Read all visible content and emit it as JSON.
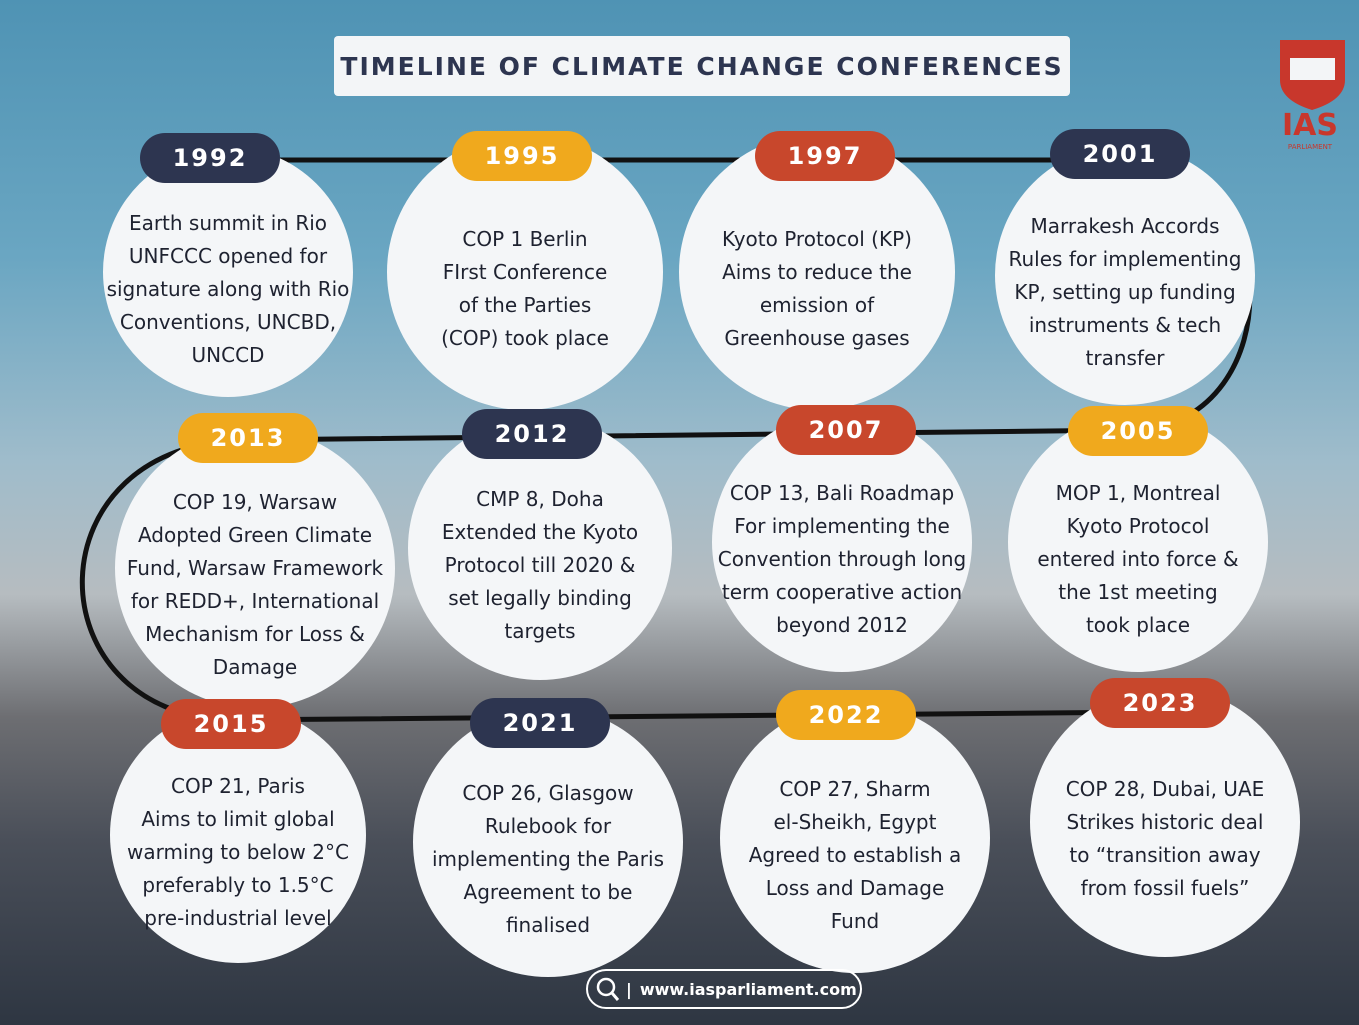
{
  "header": {
    "title": "TIMELINE OF CLIMATE CHANGE CONFERENCES",
    "logo": "IAS",
    "logo_subtitle": "PARLIAMENT"
  },
  "events": [
    {
      "year": "1992",
      "color": "#2d3550",
      "lines": [
        "Earth summit in Rio",
        "UNFCCC opened for",
        "signature along with Rio",
        "Conventions, UNCBD,",
        "UNCCD"
      ]
    },
    {
      "year": "1995",
      "color": "#f0a91d",
      "lines": [
        "COP 1 Berlin",
        "FIrst Conference",
        "of the Parties",
        "(COP) took place"
      ]
    },
    {
      "year": "1997",
      "color": "#c8472c",
      "lines": [
        "Kyoto Protocol (KP)",
        "Aims to reduce the",
        "emission of",
        "Greenhouse gases"
      ]
    },
    {
      "year": "2001",
      "color": "#2d3550",
      "lines": [
        "Marrakesh Accords",
        "Rules for implementing",
        "KP, setting up funding",
        "instruments & tech",
        "transfer"
      ]
    },
    {
      "year": "2005",
      "color": "#f0a91d",
      "lines": [
        "MOP 1, Montreal",
        "Kyoto Protocol",
        "entered into force &",
        "the 1st meeting",
        "took place"
      ]
    },
    {
      "year": "2007",
      "color": "#c8472c",
      "lines": [
        "COP 13, Bali Roadmap",
        "For implementing the",
        "Convention through long",
        "term cooperative action",
        "beyond 2012"
      ]
    },
    {
      "year": "2012",
      "color": "#2d3550",
      "lines": [
        "CMP 8, Doha",
        "Extended the Kyoto",
        "Protocol till 2020 &",
        "set legally binding",
        "targets"
      ]
    },
    {
      "year": "2013",
      "color": "#f0a91d",
      "lines": [
        "COP 19, Warsaw",
        "Adopted Green Climate",
        "Fund, Warsaw Framework",
        "for REDD+, International",
        "Mechanism for Loss &",
        "Damage"
      ]
    },
    {
      "year": "2015",
      "color": "#c8472c",
      "lines": [
        "COP 21, Paris",
        "Aims to limit global",
        "warming to below 2°C",
        "preferably to 1.5°C",
        "pre-industrial level"
      ]
    },
    {
      "year": "2021",
      "color": "#2d3550",
      "lines": [
        "COP 26, Glasgow",
        "Rulebook for",
        "implementing the Paris",
        "Agreement to be",
        "finalised"
      ]
    },
    {
      "year": "2022",
      "color": "#f0a91d",
      "lines": [
        "COP 27, Sharm",
        "el-Sheikh, Egypt",
        "Agreed to establish a",
        "Loss and Damage",
        "Fund"
      ]
    },
    {
      "year": "2023",
      "color": "#c8472c",
      "lines": [
        "COP 28, Dubai, UAE",
        "Strikes historic deal",
        "to “transition away",
        "from fossil fuels”"
      ]
    }
  ],
  "footer": {
    "url": "www.iasparliament.com"
  }
}
